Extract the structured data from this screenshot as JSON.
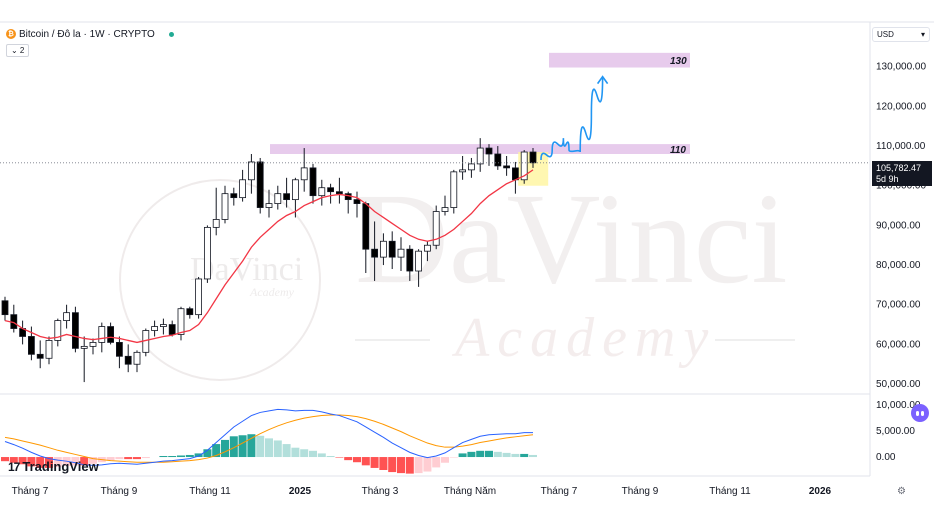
{
  "header": {
    "symbol": "Bitcoin / Đô la · 1W · CRYPTO",
    "coin_glyph": "₿",
    "indicator_count": "⌄ 2"
  },
  "currency_selector": {
    "label": "USD",
    "caret": "▾"
  },
  "price_label": {
    "value": "105,782.47",
    "countdown": "5d 9h"
  },
  "brand": {
    "logo_mark": "17",
    "name": "TradingView"
  },
  "watermark": {
    "title": "DaVinci",
    "subtitle": "Academy"
  },
  "settings_glyph": "⚙",
  "colors": {
    "up": "#ffffff",
    "down": "#000000",
    "ma": "#f23645",
    "macd": "#2962ff",
    "signal": "#ff9800",
    "hist_pos_strong": "#26a69a",
    "hist_pos_weak": "#b2dfdb",
    "hist_neg_strong": "#ff5252",
    "hist_neg_weak": "#ffcdd2",
    "zone": "#e1bee7",
    "highlight": "#fff59d",
    "arrow": "#2196f3"
  },
  "chart_data": {
    "type": "candlestick",
    "x_ticks": [
      "Tháng 7",
      "Tháng 9",
      "Tháng 11",
      "2025",
      "Tháng 3",
      "Tháng Năm",
      "Tháng 7",
      "Tháng 9",
      "Tháng 11",
      "2026"
    ],
    "y_ticks": [
      "130,000.00",
      "120,000.00",
      "110,000.00",
      "100,000.00",
      "90,000.00",
      "80,000.00",
      "70,000.00",
      "60,000.00",
      "50,000.00"
    ],
    "ylim": [
      48000,
      138000
    ],
    "current_price": 105782.47,
    "candles": [
      [
        71000,
        72000,
        66000,
        67500
      ],
      [
        67500,
        70000,
        63000,
        64000
      ],
      [
        64000,
        66000,
        60000,
        62000
      ],
      [
        62000,
        64500,
        56000,
        57500
      ],
      [
        57500,
        61000,
        54000,
        56500
      ],
      [
        56500,
        62000,
        55000,
        61000
      ],
      [
        61000,
        66500,
        59500,
        66000
      ],
      [
        66000,
        70000,
        64000,
        68000
      ],
      [
        68000,
        69500,
        58000,
        59000
      ],
      [
        59000,
        62000,
        50500,
        59500
      ],
      [
        59500,
        61500,
        57500,
        60500
      ],
      [
        60500,
        65500,
        58000,
        64500
      ],
      [
        64500,
        65500,
        60000,
        60500
      ],
      [
        60500,
        62000,
        54000,
        57000
      ],
      [
        57000,
        60000,
        53000,
        55000
      ],
      [
        55000,
        58500,
        53000,
        58000
      ],
      [
        58000,
        64000,
        57000,
        63500
      ],
      [
        63500,
        66000,
        62000,
        64500
      ],
      [
        64500,
        66500,
        62500,
        65000
      ],
      [
        65000,
        66000,
        62000,
        62500
      ],
      [
        62500,
        69500,
        61000,
        69000
      ],
      [
        69000,
        69500,
        66500,
        67500
      ],
      [
        67500,
        77000,
        66500,
        76500
      ],
      [
        76500,
        90000,
        75500,
        89500
      ],
      [
        89500,
        99500,
        87500,
        91500
      ],
      [
        91500,
        100000,
        90500,
        98000
      ],
      [
        98000,
        99500,
        95000,
        97000
      ],
      [
        97000,
        104000,
        96000,
        101500
      ],
      [
        101500,
        108000,
        98000,
        106000
      ],
      [
        106000,
        107000,
        93000,
        94500
      ],
      [
        94500,
        99000,
        92000,
        95500
      ],
      [
        95500,
        100000,
        94000,
        98000
      ],
      [
        98000,
        102000,
        94500,
        96500
      ],
      [
        96500,
        102000,
        92000,
        101500
      ],
      [
        101500,
        109500,
        98500,
        104500
      ],
      [
        104500,
        105500,
        95500,
        97500
      ],
      [
        97500,
        101500,
        95000,
        99500
      ],
      [
        99500,
        100500,
        95500,
        98500
      ],
      [
        98500,
        102000,
        95500,
        98000
      ],
      [
        98000,
        98500,
        93000,
        96500
      ],
      [
        96500,
        98500,
        92000,
        95500
      ],
      [
        95500,
        96000,
        78000,
        84000
      ],
      [
        84000,
        91000,
        76000,
        82000
      ],
      [
        82000,
        88000,
        80000,
        86000
      ],
      [
        86000,
        88500,
        79000,
        82000
      ],
      [
        82000,
        87000,
        78500,
        84000
      ],
      [
        84000,
        85000,
        76000,
        78500
      ],
      [
        78500,
        84000,
        74500,
        83500
      ],
      [
        83500,
        86000,
        81000,
        85000
      ],
      [
        85000,
        95000,
        84000,
        93500
      ],
      [
        93500,
        97500,
        92500,
        94500
      ],
      [
        94500,
        104000,
        93000,
        103500
      ],
      [
        103500,
        107500,
        101500,
        104000
      ],
      [
        104000,
        107000,
        102000,
        105500
      ],
      [
        105500,
        112000,
        103500,
        109500
      ],
      [
        109500,
        110500,
        105000,
        108000
      ],
      [
        108000,
        110000,
        104000,
        105000
      ],
      [
        105000,
        107500,
        102500,
        104500
      ],
      [
        104500,
        106000,
        98000,
        101500
      ],
      [
        101500,
        109000,
        100500,
        108500
      ],
      [
        108500,
        109500,
        104500,
        105782
      ]
    ],
    "ma_series": {
      "color": "#f23645",
      "values": [
        66000,
        65500,
        64000,
        63000,
        62000,
        61500,
        61800,
        62500,
        62000,
        61500,
        61200,
        61500,
        61800,
        61500,
        61000,
        60500,
        61000,
        61500,
        62000,
        62300,
        63000,
        63500,
        65000,
        68000,
        71500,
        75000,
        78000,
        81000,
        84500,
        87000,
        89000,
        91000,
        92500,
        93500,
        95000,
        96000,
        97000,
        97500,
        97800,
        97500,
        97000,
        95500,
        93500,
        92000,
        90500,
        89000,
        87500,
        86500,
        86000,
        86500,
        87500,
        89000,
        91000,
        93000,
        95500,
        97500,
        99000,
        100500,
        101500,
        102500,
        104000
      ]
    },
    "zones": [
      {
        "label": "110",
        "top": 110500,
        "bottom": 108000
      },
      {
        "label": "130",
        "top": 133500,
        "bottom": 129800
      }
    ],
    "projection_path": [
      [
        0,
        106500
      ],
      [
        2,
        109000
      ],
      [
        4,
        112000
      ],
      [
        5,
        109000
      ],
      [
        7,
        108500
      ],
      [
        9,
        118000
      ],
      [
        11,
        127500
      ]
    ],
    "macd": {
      "ylim": [
        -2500,
        11000
      ],
      "y_ticks": [
        "10,000.00",
        "5,000.00",
        "0.00"
      ],
      "macd": [
        3000,
        2400,
        1700,
        900,
        200,
        -300,
        -600,
        -800,
        -1100,
        -1500,
        -1600,
        -1500,
        -1300,
        -1200,
        -1300,
        -1400,
        -1200,
        -1000,
        -800,
        -700,
        -500,
        -300,
        200,
        1300,
        2800,
        4300,
        5800,
        6900,
        8000,
        8600,
        8900,
        9200,
        9100,
        8900,
        9000,
        9000,
        8700,
        8300,
        8000,
        7400,
        6800,
        5800,
        4800,
        3800,
        2700,
        1800,
        900,
        300,
        -100,
        200,
        800,
        1800,
        2800,
        3400,
        4000,
        4300,
        4400,
        4500,
        4500,
        4700,
        4700
      ],
      "signal": [
        3800,
        3500,
        3100,
        2700,
        2300,
        1800,
        1300,
        900,
        500,
        100,
        -300,
        -500,
        -700,
        -800,
        -900,
        -1000,
        -1000,
        -1000,
        -1000,
        -900,
        -800,
        -700,
        -500,
        -200,
        300,
        1000,
        1800,
        2700,
        3600,
        4500,
        5300,
        6000,
        6600,
        7100,
        7500,
        7800,
        8000,
        8100,
        8100,
        8000,
        7800,
        7400,
        6900,
        6300,
        5600,
        4900,
        4100,
        3400,
        2700,
        2200,
        1900,
        1900,
        2100,
        2400,
        2800,
        3100,
        3400,
        3700,
        3900,
        4100,
        4300
      ],
      "histogram": [
        -800,
        -1100,
        -1400,
        -1800,
        -2100,
        -2100,
        -1900,
        -1700,
        -1600,
        -1600,
        -1300,
        -1000,
        -600,
        -400,
        -400,
        -400,
        -200,
        0,
        200,
        200,
        300,
        400,
        700,
        1500,
        2500,
        3300,
        4000,
        4200,
        4400,
        4100,
        3600,
        3200,
        2500,
        1800,
        1500,
        1200,
        700,
        200,
        -100,
        -600,
        -1000,
        -1600,
        -2100,
        -2500,
        -2900,
        -3100,
        -3200,
        -3100,
        -2800,
        -2000,
        -1100,
        -100,
        700,
        1000,
        1200,
        1200,
        1000,
        800,
        600,
        600,
        400
      ]
    }
  }
}
